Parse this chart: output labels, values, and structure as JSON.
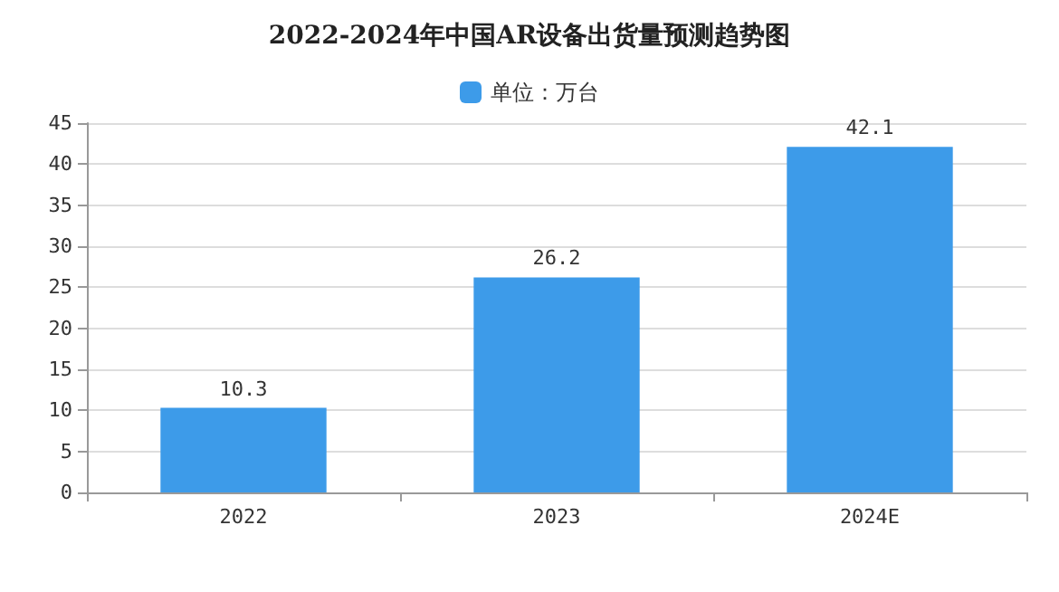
{
  "chart_data": {
    "type": "bar",
    "title": "2022-2024年中国AR设备出货量预测趋势图",
    "categories": [
      "2022",
      "2023",
      "2024E"
    ],
    "series": [
      {
        "name": "单位：万台",
        "color": "#3d9be9",
        "values": [
          10.3,
          26.2,
          42.1
        ]
      }
    ],
    "ylim": [
      0,
      45
    ],
    "yticks": [
      0,
      5,
      10,
      15,
      20,
      25,
      30,
      35,
      40,
      45
    ],
    "grid": "y",
    "legend": "top",
    "data_labels": true
  }
}
